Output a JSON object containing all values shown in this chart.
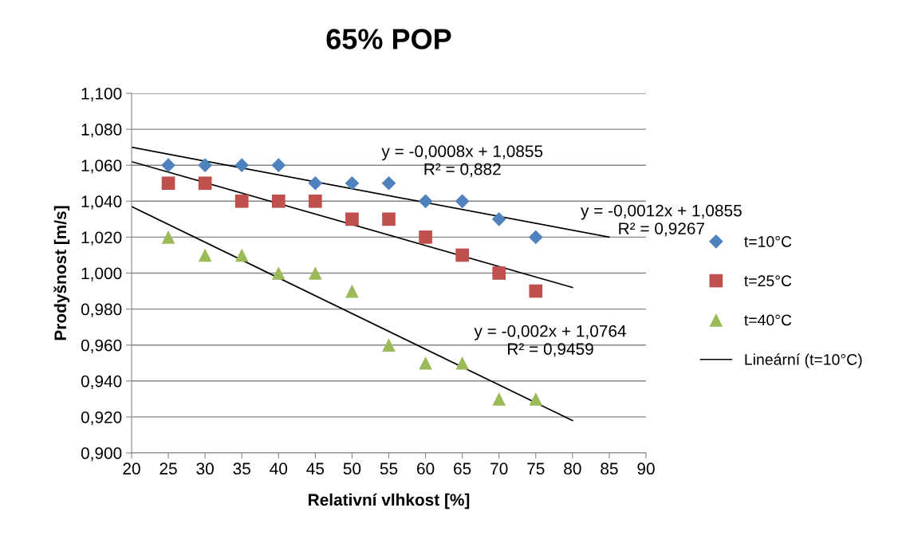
{
  "chart_data": {
    "type": "scatter",
    "title": "65% POP",
    "xlabel": "Relativní vlhkost [%]",
    "ylabel": "Prodyšnost [m/s]",
    "x": [
      25,
      30,
      35,
      40,
      45,
      50,
      55,
      60,
      65,
      70,
      75
    ],
    "series": [
      {
        "name": "t=10°C",
        "color": "#4f81bd",
        "marker": "diamond",
        "values": [
          1.06,
          1.06,
          1.06,
          1.06,
          1.05,
          1.05,
          1.05,
          1.04,
          1.04,
          1.03,
          1.02
        ]
      },
      {
        "name": "t=25°C",
        "color": "#c0504d",
        "marker": "square",
        "values": [
          1.05,
          1.05,
          1.04,
          1.04,
          1.04,
          1.03,
          1.03,
          1.02,
          1.01,
          1.0,
          0.99
        ]
      },
      {
        "name": "t=40°C",
        "color": "#9bbb59",
        "marker": "triangle",
        "values": [
          1.02,
          1.01,
          1.01,
          1.0,
          1.0,
          0.99,
          0.96,
          0.95,
          0.95,
          0.93,
          0.93
        ]
      },
      {
        "name": "Lineární (t=10°C)",
        "type": "line",
        "color": "#000000",
        "marker": "none",
        "x": [
          20,
          85
        ],
        "values": [
          1.07,
          1.02
        ]
      },
      {
        "type": "line",
        "color": "#000000",
        "marker": "none",
        "x": [
          20,
          80
        ],
        "values": [
          1.062,
          0.992
        ]
      },
      {
        "type": "line",
        "color": "#000000",
        "marker": "none",
        "x": [
          20,
          80
        ],
        "values": [
          1.037,
          0.918
        ]
      }
    ],
    "annotations": [
      "y = -0,0008x + 1,0855\nR² = 0,882",
      "y = -0,0012x + 1,0855\nR² = 0,9267",
      "y = -0,002x + 1,0764\nR² = 0,9459"
    ],
    "xlim": [
      20,
      90
    ],
    "xticks": [
      20,
      25,
      30,
      35,
      40,
      45,
      50,
      55,
      60,
      65,
      70,
      75,
      80,
      85,
      90
    ],
    "ylim": [
      0.9,
      1.1
    ],
    "yticks": [
      {
        "value": 0.9,
        "label": "0,900"
      },
      {
        "value": 0.92,
        "label": "0,920"
      },
      {
        "value": 0.94,
        "label": "0,940"
      },
      {
        "value": 0.96,
        "label": "0,960"
      },
      {
        "value": 0.98,
        "label": "0,980"
      },
      {
        "value": 1.0,
        "label": "1,000"
      },
      {
        "value": 1.02,
        "label": "1,020"
      },
      {
        "value": 1.04,
        "label": "1,040"
      },
      {
        "value": 1.06,
        "label": "1,060"
      },
      {
        "value": 1.08,
        "label": "1,080"
      },
      {
        "value": 1.1,
        "label": "1,100"
      }
    ],
    "grid": "y",
    "legend": "right"
  }
}
